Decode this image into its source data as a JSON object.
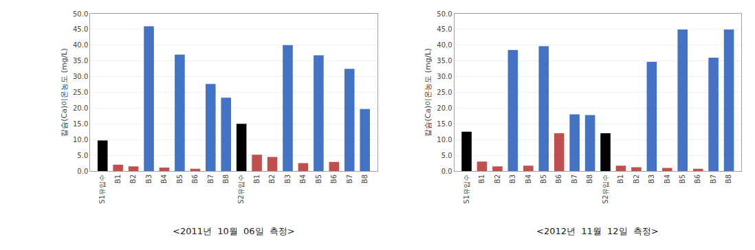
{
  "chart_data": [
    {
      "type": "bar",
      "title": "<2011년  10월  06일  측정>",
      "ylabel": "칼슘(Ca)이온농도 (mg/L)",
      "categories": [
        "S1유입수",
        "B1",
        "B2",
        "B3",
        "B4",
        "B5",
        "B6",
        "B7",
        "B8",
        "S2유입수",
        "B1",
        "B2",
        "B3",
        "B4",
        "B5",
        "B6",
        "B7",
        "B8"
      ],
      "values": [
        9.7,
        2.0,
        1.5,
        46.0,
        1.1,
        37.0,
        0.7,
        27.7,
        23.3,
        15.0,
        5.2,
        4.5,
        40.0,
        2.5,
        36.8,
        2.9,
        32.5,
        19.7
      ],
      "colors": [
        "#000000",
        "#c0504d",
        "#c0504d",
        "#4472c4",
        "#c0504d",
        "#4472c4",
        "#c0504d",
        "#4472c4",
        "#4472c4",
        "#000000",
        "#c0504d",
        "#c0504d",
        "#4472c4",
        "#c0504d",
        "#4472c4",
        "#c0504d",
        "#4472c4",
        "#4472c4"
      ],
      "ylim": [
        0,
        50
      ],
      "yticks": [
        {
          "value": 0,
          "label": "0.0"
        },
        {
          "value": 5,
          "label": "5.0"
        },
        {
          "value": 10,
          "label": "10.0"
        },
        {
          "value": 15,
          "label": "15.0"
        },
        {
          "value": 20,
          "label": "20.0"
        },
        {
          "value": 25,
          "label": "25.0"
        },
        {
          "value": 30,
          "label": "30.0"
        },
        {
          "value": 35,
          "label": "35.0"
        },
        {
          "value": 40,
          "label": "40.0"
        },
        {
          "value": 45,
          "label": "45.0"
        },
        {
          "value": 50,
          "label": "50.0"
        }
      ],
      "grid": true
    },
    {
      "type": "bar",
      "title": "<2012년  11월  12일  측정>",
      "ylabel": "칼슘(Ca)이온농도 (mg/L)",
      "categories": [
        "S1유입수",
        "B1",
        "B2",
        "B3",
        "B4",
        "B5",
        "B6",
        "B7",
        "B8",
        "S2유입수",
        "B1",
        "B2",
        "B3",
        "B4",
        "B5",
        "B6",
        "B7",
        "B8"
      ],
      "values": [
        12.5,
        3.0,
        1.5,
        38.5,
        1.7,
        39.7,
        12.0,
        18.0,
        17.8,
        12.0,
        1.7,
        1.2,
        34.7,
        1.0,
        45.0,
        0.7,
        36.0,
        45.0
      ],
      "colors": [
        "#000000",
        "#c0504d",
        "#c0504d",
        "#4472c4",
        "#c0504d",
        "#4472c4",
        "#c0504d",
        "#4472c4",
        "#4472c4",
        "#000000",
        "#c0504d",
        "#c0504d",
        "#4472c4",
        "#c0504d",
        "#4472c4",
        "#c0504d",
        "#4472c4",
        "#4472c4"
      ],
      "ylim": [
        0,
        50
      ],
      "yticks": [
        {
          "value": 0,
          "label": "0.0"
        },
        {
          "value": 5,
          "label": "5.0"
        },
        {
          "value": 10,
          "label": "10.0"
        },
        {
          "value": 15,
          "label": "15.0"
        },
        {
          "value": 20,
          "label": "20.0"
        },
        {
          "value": 25,
          "label": "25.0"
        },
        {
          "value": 30,
          "label": "30.0"
        },
        {
          "value": 35,
          "label": "35.0"
        },
        {
          "value": 40,
          "label": "40.0"
        },
        {
          "value": 45,
          "label": "45.0"
        },
        {
          "value": 50,
          "label": "50.0"
        }
      ],
      "grid": true
    }
  ]
}
